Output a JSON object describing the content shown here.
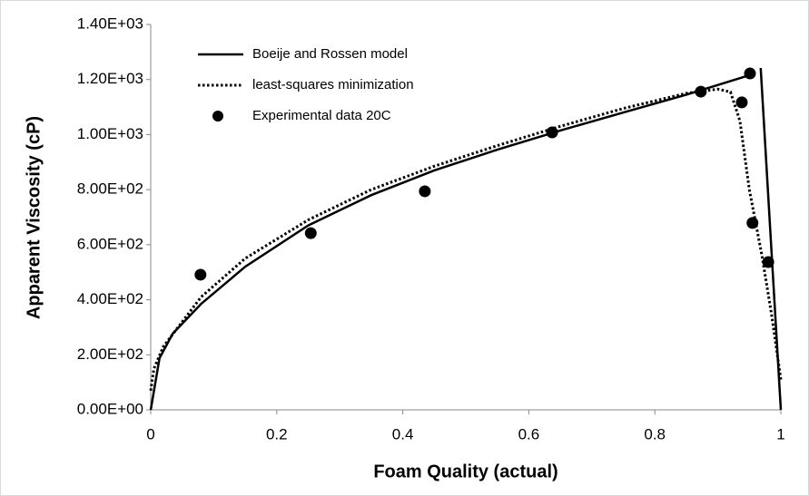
{
  "chart_data": {
    "type": "line",
    "x_label": "Foam Quality (actual)",
    "y_label": "Apparent Viscosity (cP)",
    "xlim": [
      0,
      1
    ],
    "xticks": [
      0,
      0.2,
      0.4,
      0.6,
      0.8,
      1
    ],
    "ylim": [
      0,
      1400
    ],
    "yticks": [
      {
        "value": 0,
        "label": "0.00E+00"
      },
      {
        "value": 200,
        "label": "2.00E+02"
      },
      {
        "value": 400,
        "label": "4.00E+02"
      },
      {
        "value": 600,
        "label": "6.00E+02"
      },
      {
        "value": 800,
        "label": "8.00E+02"
      },
      {
        "value": 1000,
        "label": "1.00E+03"
      },
      {
        "value": 1200,
        "label": "1.20E+03"
      },
      {
        "value": 1400,
        "label": "1.40E+03"
      }
    ],
    "grid": false,
    "legend": "top-left",
    "series": [
      {
        "name": "Boeije and Rossen model",
        "color": "#000000",
        "style": "solid",
        "x": [
          0,
          0.014,
          0.035,
          0.08,
          0.15,
          0.25,
          0.35,
          0.45,
          0.55,
          0.65,
          0.75,
          0.85,
          0.945,
          0.95,
          0.968,
          1.0
        ],
        "values": [
          0,
          188,
          277,
          385,
          520,
          670,
          780,
          870,
          945,
          1015,
          1080,
          1145,
          1212,
          null,
          1242,
          0
        ]
      },
      {
        "name": "least-squares minimization",
        "color": "#000000",
        "style": "dotted",
        "x": [
          0,
          0.005,
          0.02,
          0.08,
          0.15,
          0.25,
          0.35,
          0.45,
          0.55,
          0.65,
          0.75,
          0.85,
          0.9,
          0.92,
          0.935,
          0.95,
          0.97,
          0.985,
          1.0
        ],
        "values": [
          70,
          150,
          230,
          410,
          550,
          690,
          800,
          885,
          960,
          1030,
          1095,
          1150,
          1165,
          1155,
          1050,
          800,
          560,
          350,
          110
        ]
      },
      {
        "name": "Experimental data 20C",
        "color": "#000000",
        "style": "markers",
        "x": [
          0.079,
          0.254,
          0.435,
          0.637,
          0.873,
          0.951,
          0.938,
          0.955,
          0.98
        ],
        "values": [
          491,
          642,
          794,
          1008,
          1156,
          1222,
          1117,
          679,
          537
        ]
      }
    ]
  }
}
